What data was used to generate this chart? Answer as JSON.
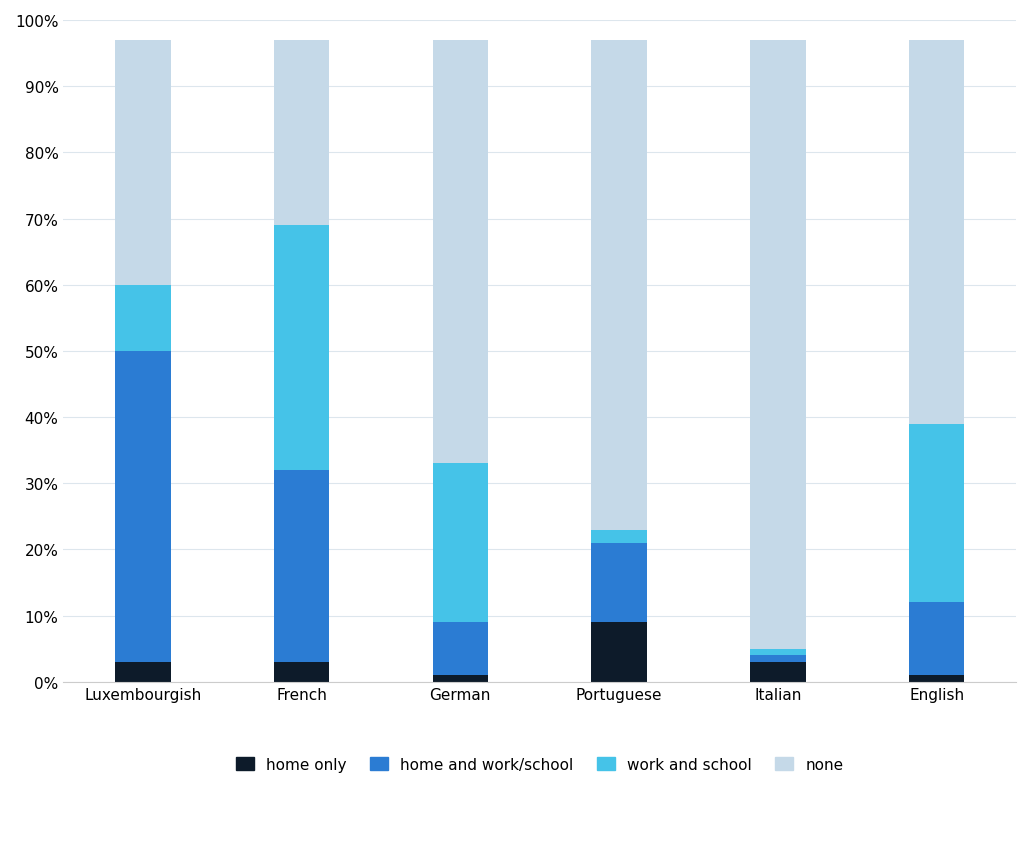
{
  "categories": [
    "Luxembourgish",
    "French",
    "German",
    "Portuguese",
    "Italian",
    "English"
  ],
  "series": {
    "home only": [
      3,
      3,
      1,
      9,
      3,
      1
    ],
    "home and work/school": [
      47,
      29,
      8,
      12,
      1,
      11
    ],
    "work and school": [
      10,
      37,
      24,
      2,
      1,
      27
    ],
    "none": [
      37,
      28,
      64,
      74,
      92,
      58
    ]
  },
  "colors": {
    "home only": "#0d1b2a",
    "home and work/school": "#2b7cd3",
    "work and school": "#45c3e8",
    "none": "#c5d9e8"
  },
  "bar_width": 0.35,
  "ylim": [
    0,
    100
  ],
  "ytick_labels": [
    "0%",
    "10%",
    "20%",
    "30%",
    "40%",
    "50%",
    "60%",
    "70%",
    "80%",
    "90%",
    "100%"
  ],
  "ytick_values": [
    0,
    10,
    20,
    30,
    40,
    50,
    60,
    70,
    80,
    90,
    100
  ],
  "background_color": "#ffffff",
  "grid_color": "#dde6ed",
  "legend_order": [
    "home only",
    "home and work/school",
    "work and school",
    "none"
  ],
  "legend_fontsize": 11,
  "tick_fontsize": 11,
  "figsize": [
    10.31,
    8.45
  ]
}
